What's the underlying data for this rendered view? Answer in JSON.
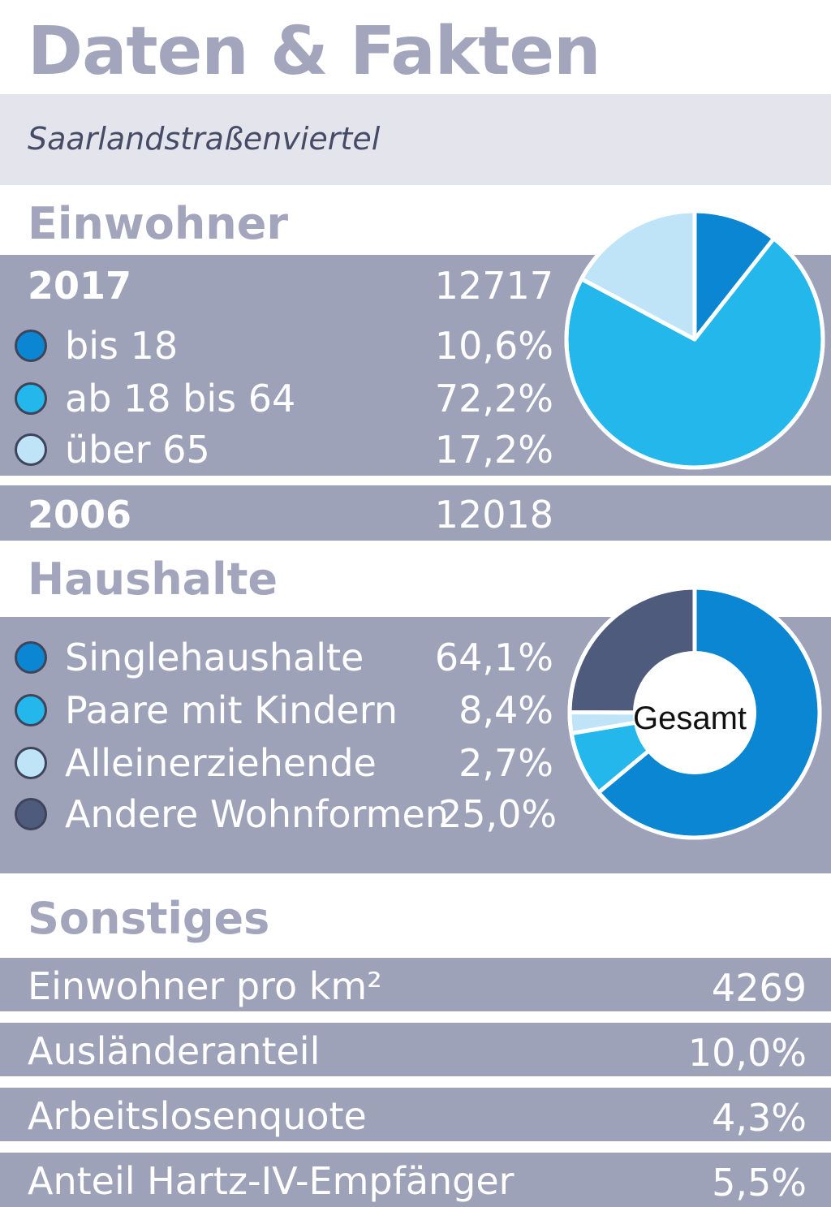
{
  "title": "Daten & Fakten",
  "subtitle": "Saarlandstraßenviertel",
  "colors": {
    "dark_blue": "#0a86d2",
    "mid_blue": "#23b7eb",
    "light_blue": "#bfe3f7",
    "slate": "#4e5b7c",
    "band_gray": "#9ea2b8",
    "heading_gray": "#a2a5bc"
  },
  "einwohner": {
    "heading": "Einwohner",
    "year_2017": "2017",
    "value_2017": "12717",
    "year_2006": "2006",
    "value_2006": "12018",
    "legend": [
      {
        "label": "bis 18",
        "value": "10,6%",
        "color": "#0a86d2"
      },
      {
        "label": "ab 18 bis 64",
        "value": "72,2%",
        "color": "#23b7eb"
      },
      {
        "label": "über 65",
        "value": "17,2%",
        "color": "#bfe3f7"
      }
    ]
  },
  "haushalte": {
    "heading": "Haushalte",
    "center_label": "Gesamt",
    "legend": [
      {
        "label": "Singlehaushalte",
        "value": "64,1%",
        "color": "#0a86d2"
      },
      {
        "label": "Paare mit Kindern",
        "value": "8,4%",
        "color": "#23b7eb"
      },
      {
        "label": "Alleinerziehende",
        "value": "2,7%",
        "color": "#bfe3f7"
      },
      {
        "label": "Andere Wohnformen",
        "value": "25,0%",
        "color": "#4e5b7c"
      }
    ]
  },
  "sonstiges": {
    "heading": "Sonstiges",
    "rows": [
      {
        "label": "Einwohner pro km²",
        "value": "4269"
      },
      {
        "label": "Ausländeranteil",
        "value": "10,0%"
      },
      {
        "label": "Arbeitslosenquote",
        "value": "4,3%"
      },
      {
        "label": "Anteil Hartz-IV-Empfänger",
        "value": "5,5%"
      }
    ]
  },
  "chart_data": [
    {
      "type": "pie",
      "categories": [
        "bis 18",
        "ab 18 bis 64",
        "über 65"
      ],
      "values": [
        10.6,
        72.2,
        17.2
      ],
      "colors": [
        "#0a86d2",
        "#23b7eb",
        "#bfe3f7"
      ],
      "title": "Einwohner"
    },
    {
      "type": "pie",
      "categories": [
        "Singlehaushalte",
        "Paare mit Kindern",
        "Alleinerziehende",
        "Andere Wohnformen"
      ],
      "values": [
        64.1,
        8.4,
        2.7,
        25.0
      ],
      "colors": [
        "#0a86d2",
        "#23b7eb",
        "#bfe3f7",
        "#4e5b7c"
      ],
      "title": "Haushalte",
      "center_label": "Gesamt"
    }
  ]
}
